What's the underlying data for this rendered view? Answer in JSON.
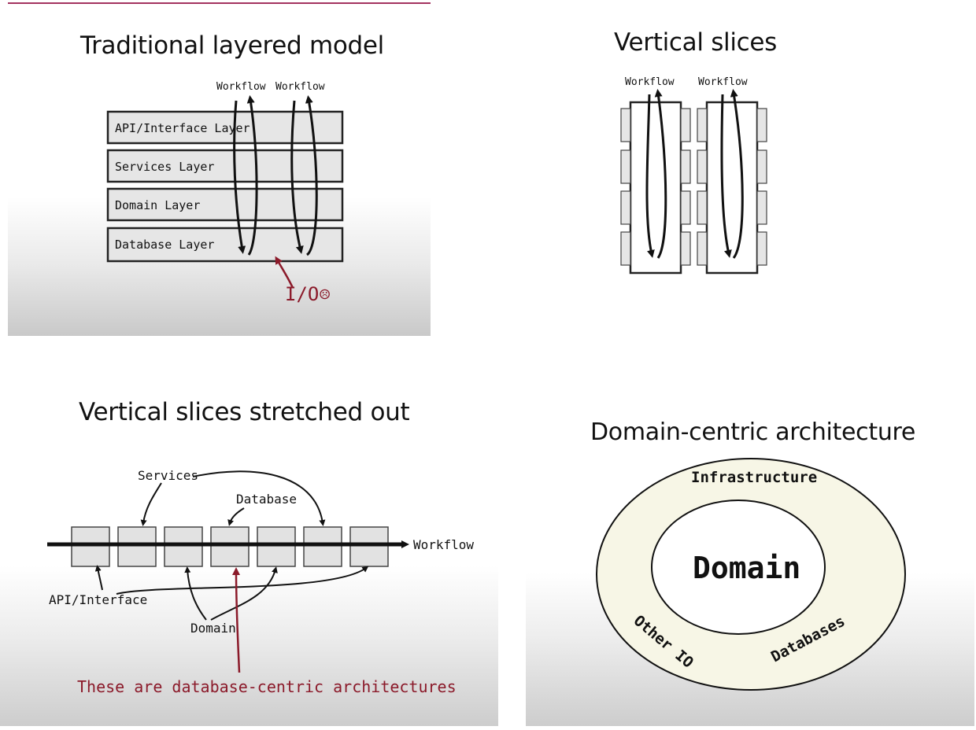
{
  "panel1": {
    "title": "Traditional layered model",
    "workflow_labels": [
      "Workflow",
      "Workflow"
    ],
    "layers": [
      "API/Interface Layer",
      "Services Layer",
      "Domain Layer",
      "Database Layer"
    ],
    "io_label": "I/O",
    "io_face": "☹",
    "accent": "#9b1c2c"
  },
  "panel2": {
    "title": "Vertical slices",
    "workflow_labels": [
      "Workflow",
      "Workflow"
    ]
  },
  "panel3": {
    "title": "Vertical slices stretched out",
    "services_label": "Services",
    "database_label": "Database",
    "workflow_label": "Workflow",
    "api_label": "API/Interface",
    "domain_label": "Domain",
    "caption": "These are database-centric architectures",
    "box_count": 7,
    "accent": "#9b1c2c"
  },
  "panel4": {
    "title": "Domain-centric architecture",
    "outer_label": "Infrastructure",
    "inner_label": "Domain",
    "left_label": "Other IO",
    "right_label": "Databases",
    "ring_color": "#f7f6e6"
  }
}
